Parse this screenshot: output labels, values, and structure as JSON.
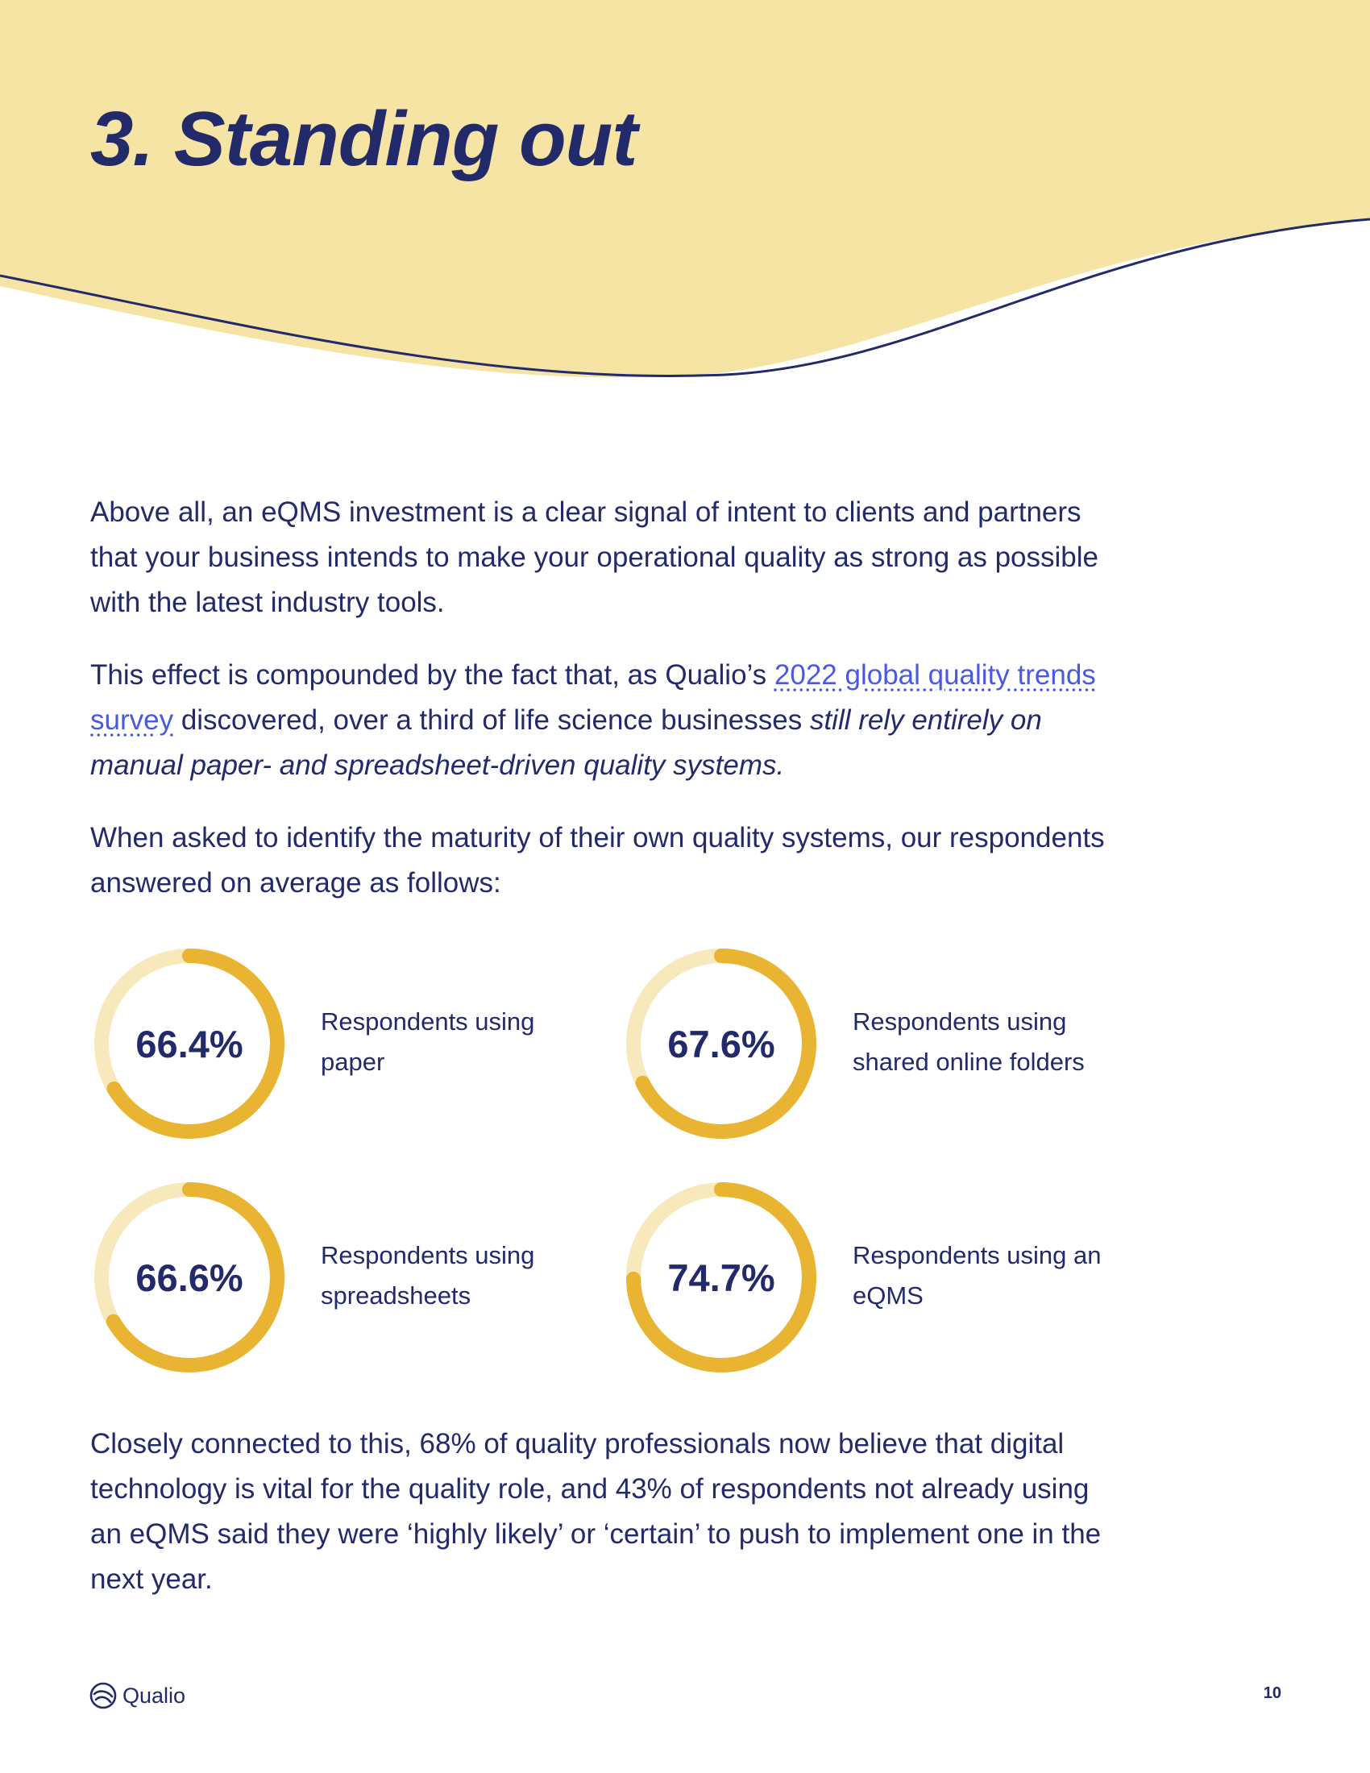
{
  "page": {
    "title": "3. Standing out",
    "page_number": "10"
  },
  "colors": {
    "header_background": "#f6e4a5",
    "navy": "#232a6a",
    "link": "#4a5ae0",
    "ring_track": "#f7e9bc",
    "ring_fill": "#e9b431"
  },
  "paragraphs": {
    "intro": "Above all, an eQMS investment is a clear signal of intent to clients and partners that your business intends to make your operational quality as strong as possible with the latest industry tools.",
    "effect_start": "This effect is compounded by the fact that, as Qualio’s ",
    "effect_link": "2022 global quality trends survey",
    "effect_middle": " discovered, over a third of life science businesses ",
    "effect_italic": "still rely entirely on manual paper- and spreadsheet-driven quality systems.",
    "maturity": "When asked to identify the maturity of their own quality systems, our respondents answered on average as follows:",
    "closing": "Closely connected to this, 68% of quality professionals now believe that digital technology is vital for the quality role, and 43% of respondents not already using an eQMS said they were ‘highly likely’ or ‘certain’ to push to implement one in the next year."
  },
  "stats": [
    {
      "value": "66.4%",
      "percent": 66.4,
      "label": "Respondents using paper"
    },
    {
      "value": "67.6%",
      "percent": 67.6,
      "label": "Respondents using shared online folders"
    },
    {
      "value": "66.6%",
      "percent": 66.6,
      "label": "Respondents using spreadsheets"
    },
    {
      "value": "74.7%",
      "percent": 74.7,
      "label": "Respondents using an eQMS"
    }
  ],
  "footer": {
    "brand_name": "Qualio",
    "logo_icon": "qualio-logo-icon"
  }
}
